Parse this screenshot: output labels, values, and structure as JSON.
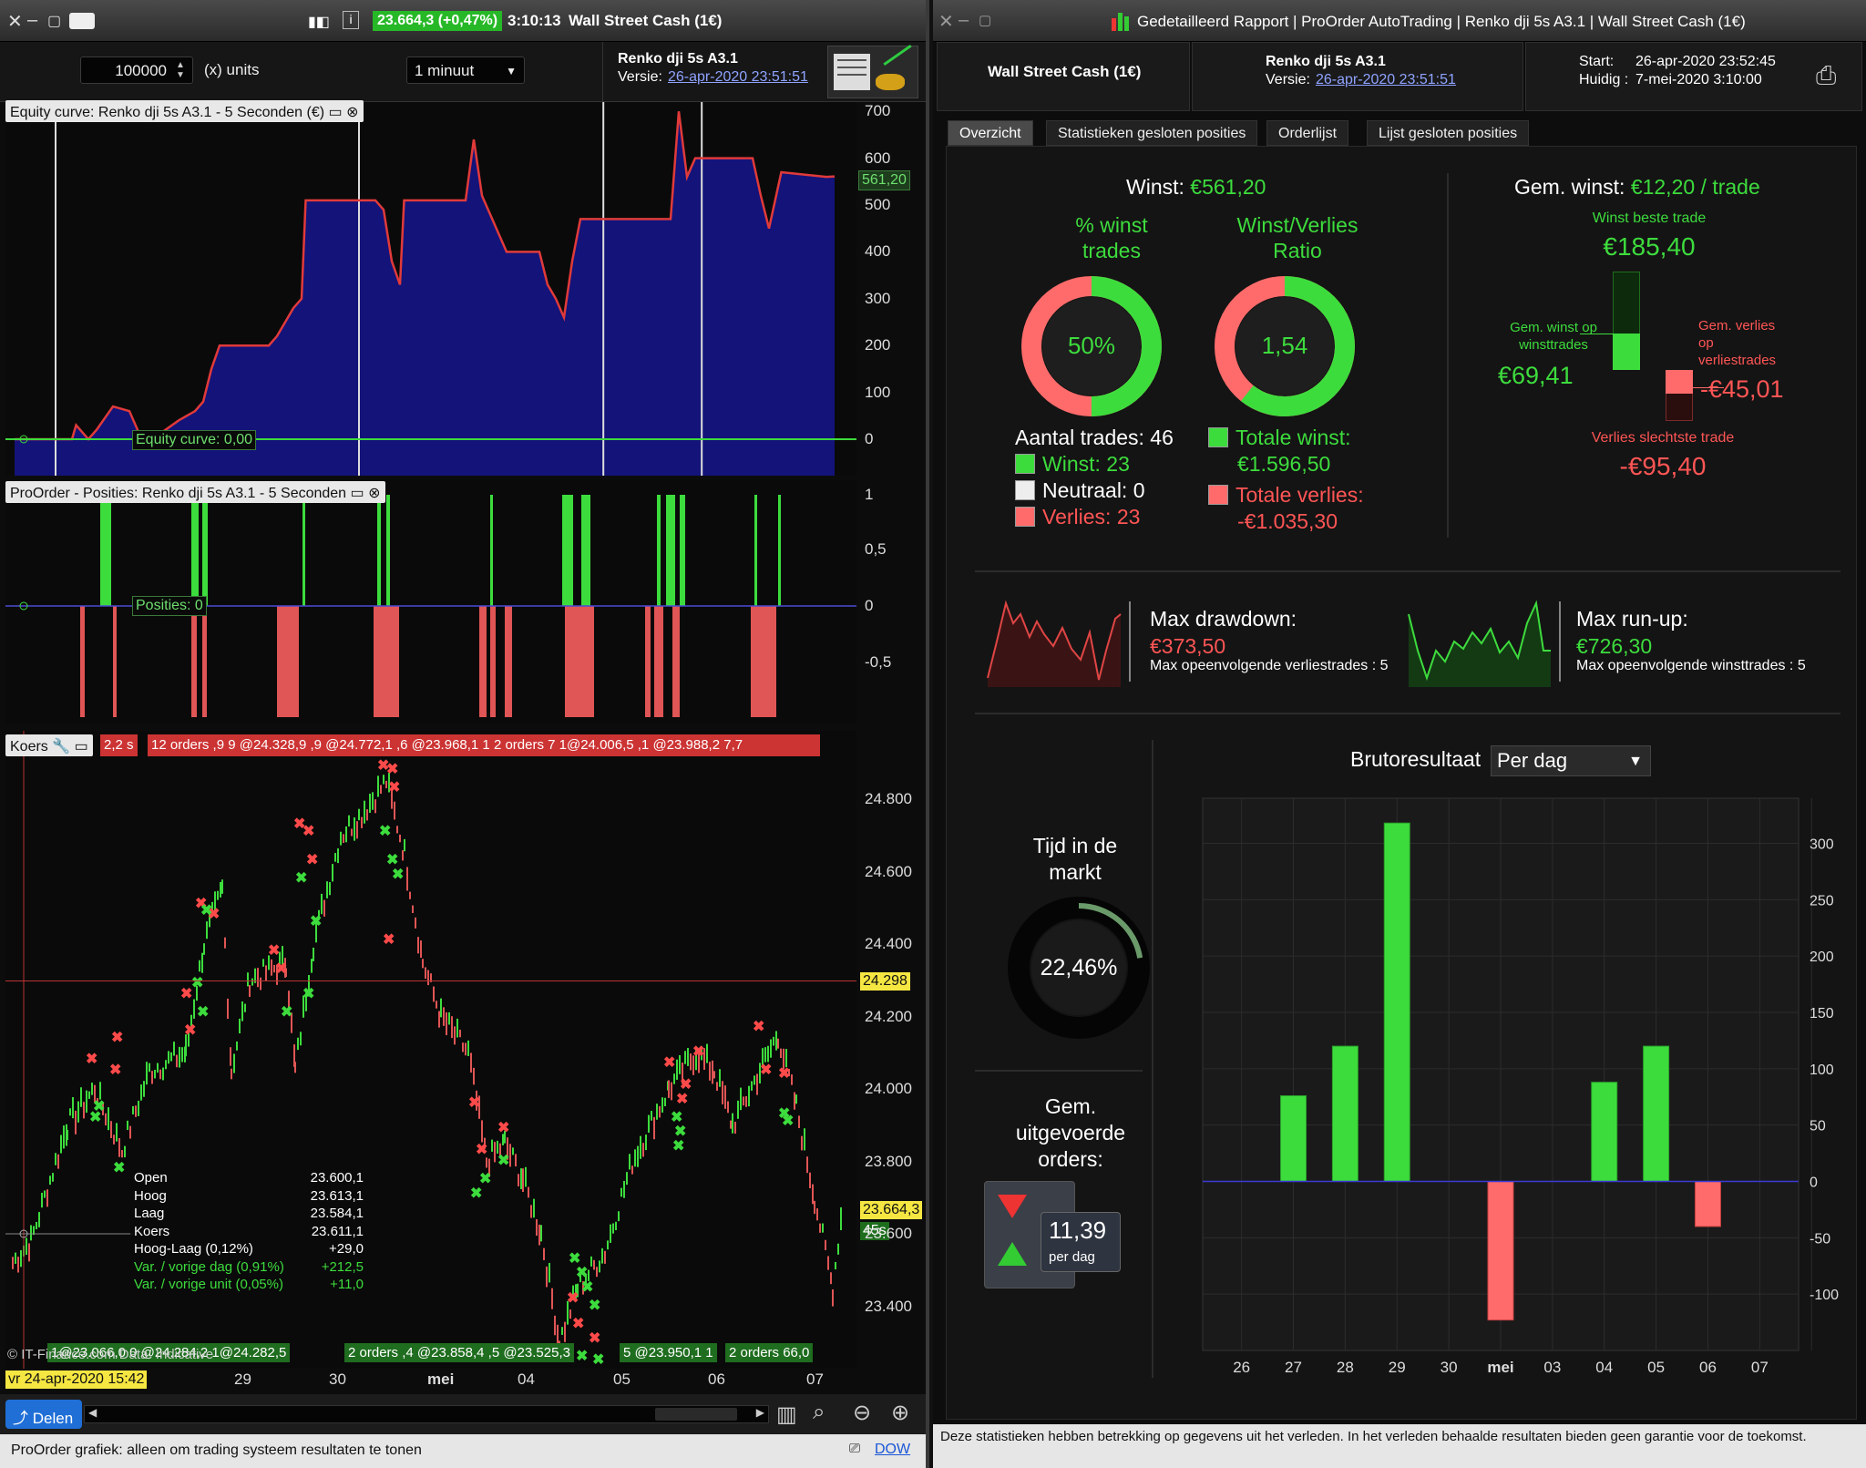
{
  "left_title": {
    "price_badge": "23.664,3 (+0,47%)",
    "time": "3:10:13",
    "instrument": "Wall Street Cash (1€)"
  },
  "toolbar": {
    "capital": "100000",
    "units": "(x) units",
    "timeframe": "1 minuut",
    "system_name": "Renko dji   5s A3.1",
    "version_label": "Versie:",
    "version_date": "26-apr-2020 23:51:51"
  },
  "equity_panel": {
    "title": "Equity curve: Renko dji   5s A3.1 - 5 Seconden (€)",
    "curve_label": "Equity curve: 0,00",
    "current_value": "561,20",
    "y_ticks": [
      "700",
      "600",
      "500",
      "400",
      "300",
      "200",
      "100",
      "0"
    ],
    "equity_points": [
      [
        0,
        0
      ],
      [
        0.07,
        0
      ],
      [
        0.075,
        30
      ],
      [
        0.09,
        0
      ],
      [
        0.1,
        20
      ],
      [
        0.12,
        70
      ],
      [
        0.14,
        60
      ],
      [
        0.15,
        20
      ],
      [
        0.16,
        -10
      ],
      [
        0.2,
        40
      ],
      [
        0.22,
        60
      ],
      [
        0.23,
        80
      ],
      [
        0.24,
        150
      ],
      [
        0.25,
        200
      ],
      [
        0.31,
        200
      ],
      [
        0.32,
        220
      ],
      [
        0.33,
        250
      ],
      [
        0.34,
        280
      ],
      [
        0.35,
        300
      ],
      [
        0.355,
        510
      ],
      [
        0.44,
        510
      ],
      [
        0.45,
        490
      ],
      [
        0.46,
        380
      ],
      [
        0.47,
        330
      ],
      [
        0.475,
        510
      ],
      [
        0.5,
        510
      ],
      [
        0.55,
        510
      ],
      [
        0.56,
        640
      ],
      [
        0.57,
        520
      ],
      [
        0.58,
        480
      ],
      [
        0.6,
        400
      ],
      [
        0.64,
        400
      ],
      [
        0.65,
        330
      ],
      [
        0.66,
        300
      ],
      [
        0.67,
        260
      ],
      [
        0.68,
        380
      ],
      [
        0.69,
        470
      ],
      [
        0.8,
        470
      ],
      [
        0.81,
        700
      ],
      [
        0.82,
        560
      ],
      [
        0.83,
        600
      ],
      [
        0.9,
        600
      ],
      [
        0.91,
        520
      ],
      [
        0.92,
        450
      ],
      [
        0.935,
        570
      ],
      [
        0.99,
        560
      ],
      [
        1,
        561
      ]
    ]
  },
  "positions_panel": {
    "title": "ProOrder - Posities: Renko dji   5s A3.1 - 5 Seconden",
    "label": "Posities: 0",
    "y_ticks": [
      "1",
      "0,5",
      "0",
      "-0,5"
    ]
  },
  "price_panel": {
    "title": "Koers",
    "orders_strip": [
      "2,2 s",
      "12 orders ,9 9 @24.328,9 ,9 @24.772,1 ,6 @23.968,1 1 2 orders  7  1@24.006,5  ,1 @23.988,2  7,7"
    ],
    "y_ticks": [
      "24.800",
      "24.600",
      "24.400",
      "24.200",
      "24.000",
      "23.800",
      "23.600",
      "23.400"
    ],
    "crosshair_price": "24.298",
    "last_price": "23.664,3",
    "countdown": "45s",
    "bottom_orders": [
      "1@23.066,0 0 @24.284,2 1@24.282,5",
      "2 orders  ,4 @23.858,4 ,5 @23.525,3",
      "5 @23.950,1 1",
      "2 orders  66,0"
    ],
    "copyright": "© IT-Finance.com  Data: Indicative",
    "x_ticks": [
      "29",
      "30",
      "mei",
      "04",
      "05",
      "06",
      "07"
    ],
    "date_tag": "vr 24-apr-2020 15:42"
  },
  "ohlc": [
    {
      "k": "Open",
      "v": "23.600,1"
    },
    {
      "k": "Hoog",
      "v": "23.613,1"
    },
    {
      "k": "Laag",
      "v": "23.584,1"
    },
    {
      "k": "Koers",
      "v": "23.611,1"
    },
    {
      "k": "Hoog-Laag (0,12%)",
      "v": "+29,0"
    }
  ],
  "ohlc_green": [
    {
      "k": "Var. / vorige dag (0,91%)",
      "v": "+212,5"
    },
    {
      "k": "Var. / vorige unit (0,05%)",
      "v": "+11,0"
    }
  ],
  "share_btn": "Delen",
  "status_left": "ProOrder grafiek: alleen om trading systeem resultaten te tonen",
  "status_right": "DOW",
  "right_title": "Gedetailleerd Rapport | ProOrder AutoTrading | Renko dji  5s A3.1 | Wall Street Cash (1€)",
  "report_hdr": {
    "instrument": "Wall Street Cash (1€)",
    "system": "Renko dji   5s A3.1",
    "version_label": "Versie:",
    "version_date": "26-apr-2020 23:51:51",
    "start_label": "Start:",
    "start_value": "26-apr-2020 23:52:45",
    "now_label": "Huidig :",
    "now_value": "7-mei-2020 3:10:00"
  },
  "tabs": [
    "Overzicht",
    "Statistieken gesloten posities",
    "Orderlijst",
    "Lijst gesloten posities"
  ],
  "overview": {
    "winst_label": "Winst:",
    "winst_value": "€561,20",
    "pct_label_1": "% winst",
    "pct_label_2": "trades",
    "pct_value": "50%",
    "pct_fraction": 0.5,
    "ratio_label_1": "Winst/Verlies",
    "ratio_label_2": "Ratio",
    "ratio_value": "1,54",
    "ratio_fraction": 0.607,
    "aantal": "Aantal trades: 46",
    "winst_count": "Winst: 23",
    "neutraal_count": "Neutraal: 0",
    "verlies_count": "Verlies: 23",
    "totale_winst_label": "Totale winst:",
    "totale_winst": "€1.596,50",
    "totale_verlies_label": "Totale verlies:",
    "totale_verlies": "-€1.035,30",
    "gem_label": "Gem. winst:",
    "gem_value": "€12,20 / trade",
    "best_label": "Winst beste trade",
    "best_value": "€185,40",
    "avg_win_label_1": "Gem. winst op",
    "avg_win_label_2": "winsttrades",
    "avg_win_value": "€69,41",
    "avg_loss_label_1": "Gem. verlies",
    "avg_loss_label_2": "op",
    "avg_loss_label_3": "verliestrades",
    "avg_loss_value": "-€45,01",
    "worst_label": "Verlies slechtste trade",
    "worst_value": "-€95,40"
  },
  "drawdown": {
    "dd_label": "Max drawdown:",
    "dd_value": "€373,50",
    "dd_sub": "Max opeenvolgende verliestrades : 5",
    "ru_label": "Max run-up:",
    "ru_value": "€726,30",
    "ru_sub": "Max opeenvolgende winsttrades : 5"
  },
  "time_in_market": {
    "label_1": "Tijd in de",
    "label_2": "markt",
    "value": "22,46%",
    "fraction": 0.2246
  },
  "orders_per_day": {
    "label_1": "Gem.",
    "label_2": "uitgevoerde",
    "label_3": "orders:",
    "value": "11,39",
    "unit": "per dag"
  },
  "chart_title": "Brutoresultaat",
  "period_select": "Per dag",
  "chart_data": {
    "type": "bar",
    "categories": [
      "26",
      "27",
      "28",
      "29",
      "30",
      "mei",
      "03",
      "04",
      "05",
      "06",
      "07"
    ],
    "values": [
      0,
      76,
      120,
      318,
      0,
      -123,
      0,
      88,
      120,
      -40,
      0
    ],
    "ylim": [
      -150,
      340
    ],
    "yticks": [
      300,
      250,
      200,
      150,
      100,
      50,
      0,
      -50,
      -100
    ],
    "grid": true
  },
  "disclaimer": "Deze statistieken hebben betrekking op gegevens uit het verleden. In het verleden behaalde resultaten bieden geen garantie voor de toekomst.",
  "colors": {
    "green": "#3ddc3d",
    "red": "#ff6b6b",
    "navy": "#11116e"
  }
}
